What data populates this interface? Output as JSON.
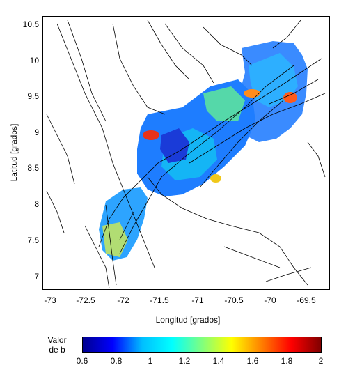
{
  "map": {
    "axis": {
      "xlabel": "Longitud [grados]",
      "ylabel": "Latitud [grados]",
      "xticks": [
        "-73",
        "-72.5",
        "-72",
        "-71.5",
        "-71",
        "-70.5",
        "-70",
        "-69.5"
      ],
      "yticks": [
        "10.5",
        "10",
        "9.5",
        "9",
        "8.5",
        "8",
        "7.5",
        "7"
      ],
      "xlim": [
        -73.2,
        -69.3
      ],
      "ylim": [
        6.85,
        10.65
      ]
    },
    "colorbar": {
      "title_line1": "Valor",
      "title_line2": "de b",
      "ticks": [
        "0.6",
        "0.8",
        "1",
        "1.2",
        "1.4",
        "1.6",
        "1.8",
        "2"
      ],
      "range": [
        0.6,
        2.0
      ],
      "colors": [
        "#00008f",
        "#0000ff",
        "#00bfff",
        "#00ffff",
        "#7fff7f",
        "#ffff00",
        "#ff8000",
        "#ff0000",
        "#800000"
      ]
    }
  }
}
